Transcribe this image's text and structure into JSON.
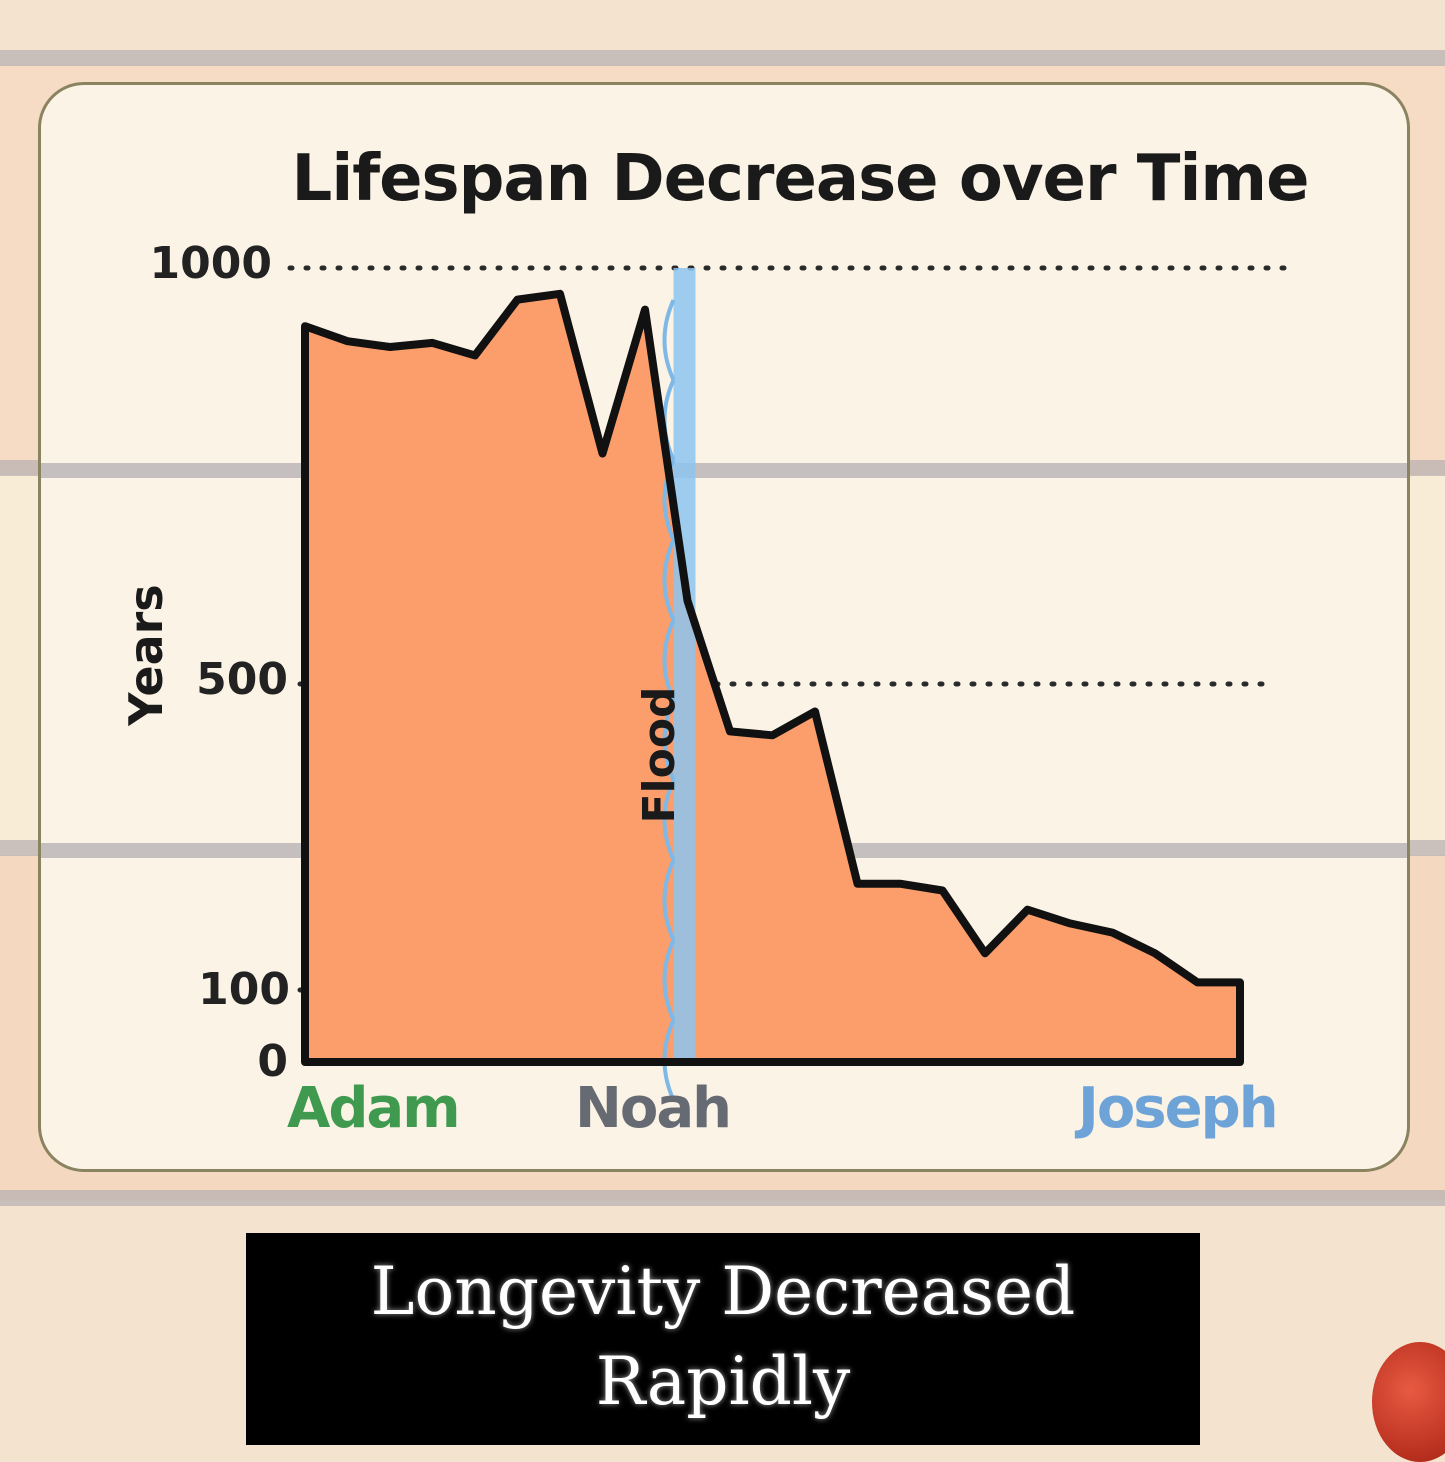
{
  "chart_data": {
    "type": "area",
    "title": "Lifespan Decrease over Time",
    "ylabel": "Years",
    "ylim": [
      0,
      1000
    ],
    "yticks": [
      0,
      100,
      500,
      1000
    ],
    "grid": "dotted lines at 100, 500, 1000",
    "x_labels": [
      {
        "name": "Adam",
        "index": 0,
        "color": "#3f9a4f"
      },
      {
        "name": "Noah",
        "index": 9,
        "color": "#666a72"
      },
      {
        "name": "Joseph",
        "index": 22,
        "color": "#6ea3d8"
      }
    ],
    "annotation": {
      "text": "Flood",
      "at_index": 9,
      "color": "#8cc4ee"
    },
    "series": [
      {
        "fill": "#fb9e6c",
        "values": [
          930,
          912,
          905,
          910,
          895,
          962,
          969,
          777,
          950,
          600,
          438,
          433,
          464,
          239,
          239,
          230,
          148,
          205,
          187,
          175,
          148,
          110,
          110
        ]
      }
    ]
  },
  "caption": {
    "line1": "Longevity Decreased",
    "line2": "Rapidly"
  },
  "colors": {
    "page_bg": "#f3e3cf",
    "card_bg": "#fbf3e6",
    "stripe": "#b9b2b3",
    "area_fill": "#fb9e6c",
    "caption_bg": "#000000"
  }
}
